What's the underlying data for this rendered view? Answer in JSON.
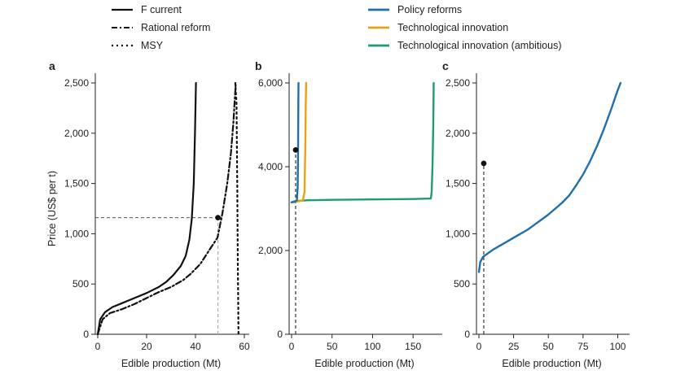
{
  "legend": {
    "left": [
      {
        "label": "F current",
        "dash": "solid"
      },
      {
        "label": "Rational reform",
        "dash": "dashdot"
      },
      {
        "label": "MSY",
        "dash": "dotted"
      }
    ],
    "right": [
      {
        "label": "Policy reforms",
        "color": "#1f6fad"
      },
      {
        "label": "Technological innovation",
        "color": "#e8a21a"
      },
      {
        "label": "Technological innovation (ambitious)",
        "color": "#1e9c73"
      }
    ]
  },
  "chart_data": [
    {
      "panel": "a",
      "type": "line",
      "xlabel": "Edible production (Mt)",
      "ylabel": "Price (US$ per t)",
      "xlim": [
        0,
        60
      ],
      "ylim": [
        0,
        2500
      ],
      "xticks": [
        {
          "v": 0,
          "label": "0"
        },
        {
          "v": 20,
          "label": "20"
        },
        {
          "v": 40,
          "label": "40"
        },
        {
          "v": 60,
          "label": "60"
        }
      ],
      "yticks": [
        {
          "v": 0,
          "label": "0"
        },
        {
          "v": 500,
          "label": "500"
        },
        {
          "v": 1000,
          "label": "1,000"
        },
        {
          "v": 1500,
          "label": "1,500"
        },
        {
          "v": 2000,
          "label": "2,000"
        },
        {
          "v": 2500,
          "label": "2,500"
        }
      ],
      "series": [
        {
          "name": "F current",
          "color": "#111111",
          "dash": "solid",
          "x": [
            0,
            1,
            3,
            6,
            10,
            15,
            20,
            25,
            28,
            31,
            34,
            36,
            37.5,
            38.5,
            39.3,
            39.8,
            40.2
          ],
          "y": [
            0,
            150,
            220,
            270,
            310,
            360,
            410,
            470,
            520,
            590,
            680,
            780,
            940,
            1150,
            1500,
            2000,
            2500
          ]
        },
        {
          "name": "Rational reform",
          "color": "#111111",
          "dash": "dashdot",
          "x": [
            0,
            2,
            5,
            10,
            15,
            20,
            25,
            30,
            35,
            38,
            42,
            46,
            49,
            51,
            53,
            54.5,
            55.5,
            56.5
          ],
          "y": [
            0,
            150,
            210,
            250,
            300,
            360,
            420,
            470,
            540,
            600,
            700,
            850,
            960,
            1200,
            1500,
            1800,
            2100,
            2500
          ]
        },
        {
          "name": "MSY",
          "color": "#111111",
          "dash": "dotted",
          "x": [
            56.3,
            56.8,
            57.1,
            57.3,
            57.5,
            57.6
          ],
          "y": [
            2500,
            2300,
            1500,
            800,
            300,
            0
          ]
        }
      ],
      "marker": {
        "x": 49.2,
        "y": 1160
      },
      "hguide": {
        "y": 1160,
        "x_to": 49.2,
        "color": "#555555"
      },
      "vguide": {
        "x": 49.2,
        "y_from": 0,
        "y_to": 1160,
        "color": "#aaaaaa"
      }
    },
    {
      "panel": "b",
      "type": "line",
      "xlabel": "Edible production (Mt)",
      "ylabel": "",
      "xlim": [
        0,
        180
      ],
      "ylim": [
        0,
        6000
      ],
      "xticks": [
        {
          "v": 0,
          "label": "0"
        },
        {
          "v": 50,
          "label": "50"
        },
        {
          "v": 100,
          "label": "100"
        },
        {
          "v": 150,
          "label": "150"
        }
      ],
      "yticks": [
        {
          "v": 0,
          "label": "0"
        },
        {
          "v": 2000,
          "label": "2,000"
        },
        {
          "v": 4000,
          "label": "4,000"
        },
        {
          "v": 6000,
          "label": "6,000"
        }
      ],
      "series": [
        {
          "name": "Technological innovation (ambitious)",
          "color": "#1e9c73",
          "dash": "solid",
          "x": [
            0,
            5,
            20,
            50,
            100,
            150,
            172,
            173,
            174,
            175,
            175.5
          ],
          "y": [
            3150,
            3180,
            3200,
            3210,
            3220,
            3230,
            3240,
            3400,
            4000,
            5000,
            6000
          ]
        },
        {
          "name": "Technological innovation",
          "color": "#e8a21a",
          "dash": "solid",
          "x": [
            0,
            8,
            14,
            16,
            17,
            17.5,
            18
          ],
          "y": [
            3150,
            3170,
            3200,
            3400,
            4500,
            5500,
            6000
          ]
        },
        {
          "name": "Policy reforms",
          "color": "#1f6fad",
          "dash": "solid",
          "x": [
            0,
            4,
            6.5,
            7.5,
            8,
            8.3,
            8.5
          ],
          "y": [
            3150,
            3170,
            3200,
            3500,
            4500,
            5500,
            6000
          ]
        }
      ],
      "marker": {
        "x": 5,
        "y": 4400
      },
      "vguide": {
        "x": 5,
        "y_from": 0,
        "y_to": 4400,
        "color": "#333333"
      }
    },
    {
      "panel": "c",
      "type": "line",
      "xlabel": "Edible production (Mt)",
      "ylabel": "",
      "xlim": [
        0,
        105
      ],
      "ylim": [
        0,
        2500
      ],
      "xticks": [
        {
          "v": 0,
          "label": "0"
        },
        {
          "v": 25,
          "label": "25"
        },
        {
          "v": 50,
          "label": "50"
        },
        {
          "v": 75,
          "label": "75"
        },
        {
          "v": 100,
          "label": "100"
        }
      ],
      "yticks": [
        {
          "v": 0,
          "label": "0"
        },
        {
          "v": 500,
          "label": "500"
        },
        {
          "v": 1000,
          "label": "1,000"
        },
        {
          "v": 1500,
          "label": "1,500"
        },
        {
          "v": 2000,
          "label": "2,000"
        },
        {
          "v": 2500,
          "label": "2,500"
        }
      ],
      "series": [
        {
          "name": "Policy reforms",
          "color": "#1f6fad",
          "dash": "solid",
          "x": [
            0,
            1,
            3,
            6,
            10,
            15,
            20,
            25,
            30,
            35,
            40,
            45,
            50,
            55,
            60,
            65,
            70,
            75,
            80,
            85,
            90,
            95,
            100,
            102
          ],
          "y": [
            620,
            720,
            770,
            800,
            840,
            880,
            920,
            960,
            1000,
            1040,
            1090,
            1140,
            1190,
            1250,
            1310,
            1380,
            1480,
            1590,
            1720,
            1870,
            2040,
            2230,
            2430,
            2500
          ]
        }
      ],
      "marker": {
        "x": 3.5,
        "y": 1700
      },
      "vguide": {
        "x": 3.5,
        "y_from": 0,
        "y_to": 1700,
        "color": "#333333"
      }
    }
  ]
}
